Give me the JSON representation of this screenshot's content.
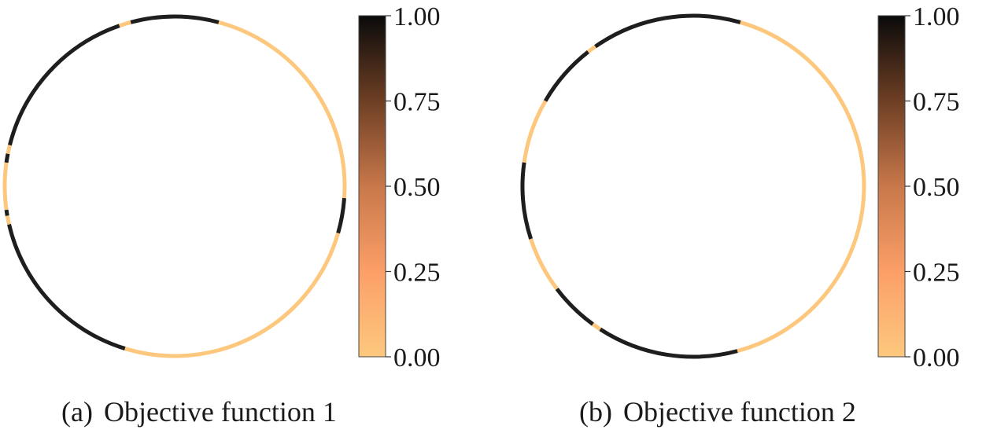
{
  "panels": [
    {
      "tag": "(a)",
      "label": "Objective function 1"
    },
    {
      "tag": "(b)",
      "label": "Objective function 2"
    }
  ],
  "colors": {
    "low": "#FDC87E",
    "mid_low": "#FC9F68",
    "mid": "#C8784A",
    "mid_high": "#7A4A2C",
    "high": "#0A0A0A",
    "ring_dark": "#1E1E1E",
    "ring_light": "#FDC87E"
  },
  "chart_data": [
    {
      "type": "circular-strip",
      "colorbar": {
        "ticks": [
          "0.00",
          "0.25",
          "0.50",
          "0.75",
          "1.00"
        ],
        "range": [
          0,
          1
        ],
        "colormap": "copper-reversed"
      },
      "segments_deg": [
        {
          "start": 0,
          "end": 75,
          "value": 0
        },
        {
          "start": 75,
          "end": 105,
          "value": 1
        },
        {
          "start": 105,
          "end": 109,
          "value": 0
        },
        {
          "start": 109,
          "end": 166,
          "value": 1
        },
        {
          "start": 166,
          "end": 169,
          "value": 0
        },
        {
          "start": 169,
          "end": 172,
          "value": 1
        },
        {
          "start": 172,
          "end": 188,
          "value": 0
        },
        {
          "start": 188,
          "end": 190,
          "value": 1
        },
        {
          "start": 190,
          "end": 193,
          "value": 0
        },
        {
          "start": 193,
          "end": 253,
          "value": 1
        },
        {
          "start": 253,
          "end": 285,
          "value": 0
        },
        {
          "start": 285,
          "end": 300,
          "value": 0
        },
        {
          "start": 300,
          "end": 344,
          "value": 0
        },
        {
          "start": 344,
          "end": 356,
          "value": 1
        },
        {
          "start": 356,
          "end": 360,
          "value": 0
        }
      ]
    },
    {
      "type": "circular-strip",
      "colorbar": {
        "ticks": [
          "0.00",
          "0.25",
          "0.50",
          "0.75",
          "1.00"
        ],
        "range": [
          0,
          1
        ],
        "colormap": "copper-reversed"
      },
      "segments_deg": [
        {
          "start": 0,
          "end": 74,
          "value": 0
        },
        {
          "start": 74,
          "end": 125,
          "value": 1
        },
        {
          "start": 125,
          "end": 128,
          "value": 0
        },
        {
          "start": 128,
          "end": 150,
          "value": 1
        },
        {
          "start": 150,
          "end": 172,
          "value": 0
        },
        {
          "start": 172,
          "end": 198,
          "value": 1
        },
        {
          "start": 198,
          "end": 217,
          "value": 0
        },
        {
          "start": 217,
          "end": 234,
          "value": 1
        },
        {
          "start": 234,
          "end": 237,
          "value": 0
        },
        {
          "start": 237,
          "end": 285,
          "value": 1
        },
        {
          "start": 285,
          "end": 360,
          "value": 0
        }
      ]
    }
  ]
}
